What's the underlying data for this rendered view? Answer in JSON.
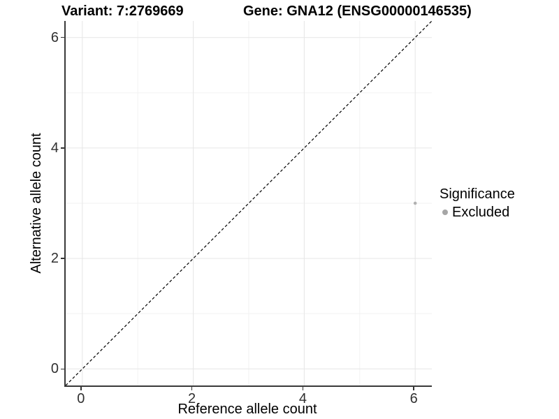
{
  "chart_data": {
    "type": "scatter",
    "titles": {
      "left": "Variant: 7:2769669",
      "right": "Gene: GNA12 (ENSG00000146535)"
    },
    "xlabel": "Reference allele count",
    "ylabel": "Alternative allele count",
    "xlim": [
      -0.3,
      6.3
    ],
    "ylim": [
      -0.3,
      6.3
    ],
    "x_ticks": [
      0,
      2,
      4,
      6
    ],
    "y_ticks": [
      0,
      2,
      4,
      6
    ],
    "minor_gridlines": [
      1,
      3,
      5
    ],
    "grid": "on",
    "points": [
      {
        "x": 6,
        "y": 3,
        "series": "Excluded"
      }
    ],
    "point_color": "#b1b1b1",
    "identity_line": {
      "slope": 1,
      "intercept": 0,
      "style": "dashed",
      "color": "#000000"
    },
    "legend": {
      "title": "Significance",
      "position": "right",
      "items": [
        {
          "label": "Excluded",
          "color": "#a6a6a6"
        }
      ]
    },
    "colors": {
      "axis_line": "#3a3a3a",
      "tick_label": "#303030",
      "grid_major": "#e6e6e6",
      "grid_minor": "#f2f2f2"
    }
  }
}
